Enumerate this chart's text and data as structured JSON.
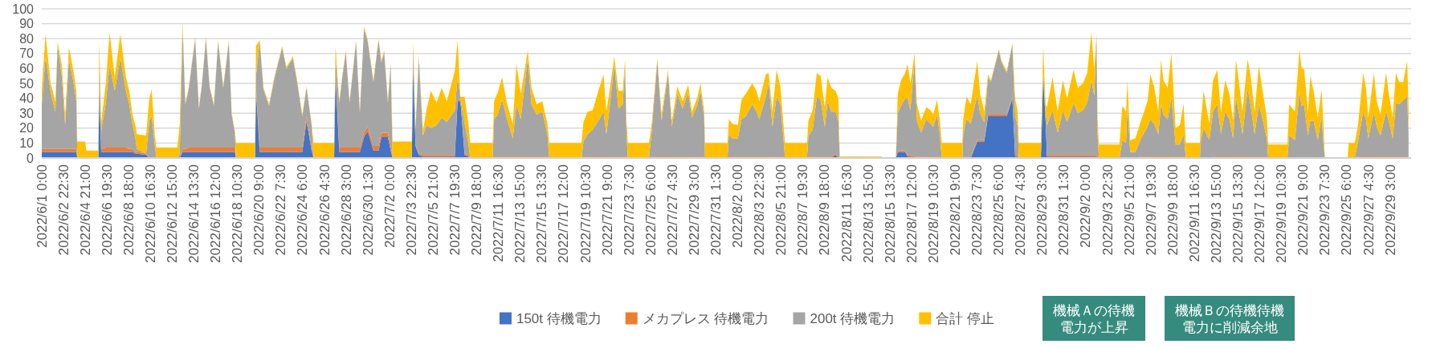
{
  "chart_data": {
    "type": "area",
    "stacked": true,
    "x": [
      "2022-06-01T00:00",
      "2022-06-01T08:00",
      "2022-06-01T19:00",
      "2022-06-02T05:00",
      "2022-06-02T10:00",
      "2022-06-02T19:00",
      "2022-06-03T02:00",
      "2022-06-03T10:00",
      "2022-06-03T19:00",
      "2022-06-04T02:00",
      "2022-06-04T04:00",
      "2022-06-04T21:00",
      "2022-06-04T23:00",
      "2022-06-06T01:00",
      "2022-06-06T03:00",
      "2022-06-06T07:00",
      "2022-06-06T17:00",
      "2022-06-07T01:00",
      "2022-06-07T12:00",
      "2022-06-08T00:00",
      "2022-06-08T12:00",
      "2022-06-08T19:00",
      "2022-06-09T02:00",
      "2022-06-09T08:00",
      "2022-06-09T11:00",
      "2022-06-10T07:00",
      "2022-06-10T14:00",
      "2022-06-10T19:00",
      "2022-06-11T02:00",
      "2022-06-11T05:00",
      "2022-06-13T02:00",
      "2022-06-13T07:00",
      "2022-06-13T13:00",
      "2022-06-13T19:00",
      "2022-06-14T02:00",
      "2022-06-14T16:00",
      "2022-06-15T00:00",
      "2022-06-15T06:00",
      "2022-06-15T15:00",
      "2022-06-15T23:00",
      "2022-06-16T08:00",
      "2022-06-16T17:00",
      "2022-06-17T04:00",
      "2022-06-17T16:00",
      "2022-06-17T22:00",
      "2022-06-18T05:00",
      "2022-06-18T07:00",
      "2022-06-20T00:00",
      "2022-06-20T02:00",
      "2022-06-20T10:00",
      "2022-06-20T18:00",
      "2022-06-21T06:00",
      "2022-06-21T17:00",
      "2022-06-22T10:00",
      "2022-06-22T19:00",
      "2022-06-23T09:00",
      "2022-06-23T18:00",
      "2022-06-24T05:00",
      "2022-06-24T14:00",
      "2022-06-25T01:00",
      "2022-06-25T05:00",
      "2022-06-27T01:00",
      "2022-06-27T04:00",
      "2022-06-27T12:00",
      "2022-06-27T18:00",
      "2022-06-28T02:00",
      "2022-06-28T10:00",
      "2022-06-29T00:00",
      "2022-06-29T08:00",
      "2022-06-29T17:00",
      "2022-06-30T01:00",
      "2022-06-30T13:00",
      "2022-07-01T00:00",
      "2022-07-01T06:00",
      "2022-07-01T12:00",
      "2022-07-01T20:00",
      "2022-07-02T02:00",
      "2022-07-02T06:00",
      "2022-07-03T23:00",
      "2022-07-04T02:00",
      "2022-07-04T07:00",
      "2022-07-04T14:00",
      "2022-07-04T23:00",
      "2022-07-05T07:00",
      "2022-07-05T16:00",
      "2022-07-06T04:00",
      "2022-07-06T15:00",
      "2022-07-07T02:00",
      "2022-07-07T19:00",
      "2022-07-08T01:00",
      "2022-07-08T07:00",
      "2022-07-08T16:00",
      "2022-07-09T00:00",
      "2022-07-09T04:00",
      "2022-07-11T04:00",
      "2022-07-11T07:00",
      "2022-07-11T15:00",
      "2022-07-12T00:00",
      "2022-07-12T11:00",
      "2022-07-12T23:00",
      "2022-07-13T07:00",
      "2022-07-13T16:00",
      "2022-07-14T07:00",
      "2022-07-14T15:00",
      "2022-07-15T02:00",
      "2022-07-15T14:00",
      "2022-07-16T01:00",
      "2022-07-16T05:00",
      "2022-07-19T02:00",
      "2022-07-19T06:00",
      "2022-07-19T15:00",
      "2022-07-20T02:00",
      "2022-07-20T14:00",
      "2022-07-21T01:00",
      "2022-07-21T07:00",
      "2022-07-21T13:00",
      "2022-07-22T00:00",
      "2022-07-22T09:00",
      "2022-07-22T18:00",
      "2022-07-22T23:00",
      "2022-07-23T02:00",
      "2022-07-23T05:00",
      "2022-07-25T02:00",
      "2022-07-25T08:00",
      "2022-07-25T20:00",
      "2022-07-26T05:00",
      "2022-07-26T19:00",
      "2022-07-27T03:00",
      "2022-07-27T15:00",
      "2022-07-28T02:00",
      "2022-07-28T14:00",
      "2022-07-28T22:00",
      "2022-07-29T10:00",
      "2022-07-29T16:00",
      "2022-07-30T00:00",
      "2022-07-30T02:00",
      "2022-08-01T02:00",
      "2022-08-01T05:00",
      "2022-08-01T12:00",
      "2022-08-02T00:00",
      "2022-08-02T08:00",
      "2022-08-02T17:00",
      "2022-08-03T07:00",
      "2022-08-03T16:00",
      "2022-08-03T22:00",
      "2022-08-04T12:00",
      "2022-08-04T18:00",
      "2022-08-05T02:00",
      "2022-08-05T11:00",
      "2022-08-05T19:00",
      "2022-08-06T01:00",
      "2022-08-06T05:00",
      "2022-08-08T04:00",
      "2022-08-08T07:00",
      "2022-08-08T16:00",
      "2022-08-09T01:00",
      "2022-08-09T09:00",
      "2022-08-09T18:00",
      "2022-08-10T00:00",
      "2022-08-10T08:00",
      "2022-08-10T17:00",
      "2022-08-10T23:00",
      "2022-08-11T02:00",
      "2022-08-14T19:00",
      "2022-08-15T00:00",
      "2022-08-16T02:00",
      "2022-08-16T06:00",
      "2022-08-16T13:00",
      "2022-08-16T22:00",
      "2022-08-17T03:00",
      "2022-08-17T09:00",
      "2022-08-17T18:00",
      "2022-08-17T23:00",
      "2022-08-18T08:00",
      "2022-08-18T19:00",
      "2022-08-19T04:00",
      "2022-08-19T10:00",
      "2022-08-19T18:00",
      "2022-08-20T00:00",
      "2022-08-20T04:00",
      "2022-08-22T00:00",
      "2022-08-22T02:00",
      "2022-08-22T09:00",
      "2022-08-22T18:00",
      "2022-08-23T08:00",
      "2022-08-23T14:00",
      "2022-08-23T23:00",
      "2022-08-24T07:00",
      "2022-08-24T13:00",
      "2022-08-25T06:00",
      "2022-08-25T12:00",
      "2022-08-25T23:00",
      "2022-08-26T11:00",
      "2022-08-26T17:00",
      "2022-08-26T22:00",
      "2022-08-27T01:00",
      "2022-08-29T00:00",
      "2022-08-29T05:00",
      "2022-08-29T10:00",
      "2022-08-29T13:00",
      "2022-08-30T01:00",
      "2022-08-30T12:00",
      "2022-08-30T23:00",
      "2022-08-31T08:00",
      "2022-08-31T22:00",
      "2022-09-01T07:00",
      "2022-09-01T18:00",
      "2022-09-02T03:00",
      "2022-09-02T12:00",
      "2022-09-02T18:00",
      "2022-09-02T23:00",
      "2022-09-03T01:00",
      "2022-09-03T04:00",
      "2022-09-05T00:00",
      "2022-09-05T06:00",
      "2022-09-05T14:00",
      "2022-09-05T17:00",
      "2022-09-05T23:00",
      "2022-09-06T10:00",
      "2022-09-06T22:00",
      "2022-09-07T12:00",
      "2022-09-07T18:00",
      "2022-09-08T02:00",
      "2022-09-08T11:00",
      "2022-09-08T17:00",
      "2022-09-08T22:00",
      "2022-09-09T07:00",
      "2022-09-09T15:00",
      "2022-09-10T00:00",
      "2022-09-10T09:00",
      "2022-09-10T17:00",
      "2022-09-10T22:00",
      "2022-09-12T04:00",
      "2022-09-12T06:00",
      "2022-09-12T12:00",
      "2022-09-13T00:00",
      "2022-09-13T08:00",
      "2022-09-13T17:00",
      "2022-09-14T01:00",
      "2022-09-14T10:00",
      "2022-09-14T19:00",
      "2022-09-15T03:00",
      "2022-09-15T09:00",
      "2022-09-15T15:00",
      "2022-09-15T23:00",
      "2022-09-16T10:00",
      "2022-09-16T16:00",
      "2022-09-17T01:00",
      "2022-09-17T10:00",
      "2022-09-17T18:00",
      "2022-09-18T03:00",
      "2022-09-18T06:00",
      "2022-09-19T23:00",
      "2022-09-20T03:00",
      "2022-09-20T15:00",
      "2022-09-21T01:00",
      "2022-09-21T05:00",
      "2022-09-21T11:00",
      "2022-09-21T19:00",
      "2022-09-22T00:00",
      "2022-09-22T07:00",
      "2022-09-22T16:00",
      "2022-09-23T00:00",
      "2022-09-23T04:00",
      "2022-09-23T07:00",
      "2022-09-25T08:00",
      "2022-09-25T10:00",
      "2022-09-25T23:00",
      "2022-09-26T06:00",
      "2022-09-26T17:00",
      "2022-09-26T23:00",
      "2022-09-27T04:00",
      "2022-09-27T16:00",
      "2022-09-27T22:00",
      "2022-09-28T06:00",
      "2022-09-28T18:00",
      "2022-09-28T23:00",
      "2022-09-29T08:00",
      "2022-09-29T15:00",
      "2022-09-29T22:00",
      "2022-09-30T07:00",
      "2022-09-30T15:00",
      "2022-09-30T18:00"
    ],
    "series": [
      {
        "name": "150t 待機電力",
        "color": "#4472c4",
        "values": [
          4,
          4,
          4,
          4,
          4,
          4,
          4,
          4,
          4,
          4,
          0,
          0,
          0,
          0,
          45,
          4,
          4,
          4,
          4,
          4,
          4,
          4,
          4,
          3,
          3,
          2,
          0,
          0,
          0,
          0,
          0,
          0,
          4,
          4,
          4,
          4,
          4,
          4,
          4,
          4,
          4,
          4,
          4,
          4,
          4,
          4,
          0,
          0,
          45,
          4,
          4,
          4,
          4,
          4,
          4,
          4,
          4,
          4,
          25,
          5,
          0,
          0,
          55,
          4,
          4,
          4,
          4,
          4,
          4,
          14,
          18,
          5,
          5,
          14,
          14,
          14,
          5,
          0,
          0,
          60,
          8,
          2,
          1,
          1,
          1,
          1,
          1,
          1,
          1,
          38,
          38,
          2,
          1,
          0,
          0,
          0,
          0,
          0,
          0,
          0,
          0,
          0,
          0,
          0,
          0,
          0,
          0,
          0,
          0,
          0,
          0,
          0,
          0,
          0,
          0,
          0,
          0,
          0,
          0,
          0,
          0,
          0,
          0,
          0,
          0,
          0,
          0,
          0,
          0,
          0,
          0,
          0,
          0,
          0,
          0,
          0,
          0,
          0,
          0,
          0,
          0,
          0,
          0,
          0,
          0,
          0,
          0,
          0,
          0,
          0,
          0,
          0,
          0,
          0,
          0,
          0,
          0,
          0,
          0,
          0,
          2,
          0,
          0,
          0,
          0,
          0,
          4,
          4,
          4,
          1,
          1,
          0,
          0,
          0,
          0,
          0,
          0,
          0,
          0,
          0,
          0,
          0,
          0,
          0,
          11,
          11,
          11,
          28,
          28,
          28,
          28,
          28,
          40,
          1,
          1,
          0,
          0,
          55,
          25,
          1,
          1,
          1,
          1,
          1,
          1,
          1,
          1,
          1,
          1,
          1,
          1,
          0,
          0,
          0,
          0,
          0,
          0,
          0,
          0,
          0,
          0,
          0,
          0,
          0,
          0,
          0,
          0,
          0,
          0,
          0,
          0,
          0,
          0,
          0,
          0,
          0,
          0,
          0,
          0,
          0,
          0,
          0,
          0,
          0,
          0,
          0,
          0,
          0,
          0,
          0,
          0,
          0,
          0,
          0,
          0,
          0,
          0,
          0,
          0,
          0,
          0,
          0,
          0,
          0,
          0,
          0,
          0,
          0,
          0,
          0,
          0,
          0,
          0,
          0,
          0,
          0,
          0,
          0,
          0,
          0,
          0,
          0,
          0
        ]
      },
      {
        "name": "メカプレス 待機電力",
        "color": "#ed7d31",
        "values": [
          2,
          2,
          2,
          2,
          2,
          2,
          2,
          2,
          2,
          2,
          0,
          0,
          0,
          0,
          2,
          2,
          3,
          3,
          3,
          3,
          3,
          2,
          2,
          1,
          1,
          1,
          0,
          0,
          0,
          0,
          0,
          0,
          2,
          2,
          3,
          3,
          3,
          3,
          3,
          3,
          3,
          3,
          3,
          3,
          3,
          3,
          0,
          0,
          2,
          3,
          3,
          3,
          3,
          3,
          3,
          3,
          3,
          3,
          3,
          2,
          0,
          0,
          2,
          3,
          3,
          3,
          3,
          3,
          3,
          3,
          3,
          3,
          3,
          3,
          3,
          3,
          3,
          0,
          0,
          2,
          1,
          1,
          1,
          1,
          1,
          1,
          1,
          1,
          1,
          1,
          1,
          1,
          1,
          0,
          0,
          1,
          1,
          1,
          1,
          1,
          1,
          1,
          1,
          1,
          1,
          1,
          1,
          0,
          0,
          1,
          1,
          1,
          1,
          1,
          1,
          1,
          1,
          1,
          1,
          1,
          1,
          0,
          0,
          1,
          1,
          1,
          1,
          1,
          1,
          1,
          1,
          1,
          1,
          1,
          1,
          0,
          0,
          1,
          1,
          1,
          1,
          1,
          1,
          1,
          1,
          1,
          1,
          1,
          1,
          1,
          1,
          0,
          0,
          1,
          1,
          1,
          1,
          1,
          1,
          1,
          1,
          1,
          0,
          0,
          0,
          0,
          1,
          1,
          1,
          1,
          1,
          1,
          1,
          1,
          1,
          1,
          1,
          1,
          1,
          0,
          0,
          1,
          1,
          1,
          1,
          1,
          1,
          1,
          1,
          1,
          1,
          1,
          1,
          1,
          1,
          0,
          0,
          1,
          1,
          1,
          1,
          1,
          1,
          1,
          1,
          1,
          1,
          1,
          1,
          1,
          1,
          1,
          0,
          0,
          0,
          0,
          0,
          0,
          0,
          1,
          1,
          1,
          1,
          1,
          1,
          1,
          1,
          1,
          1,
          1,
          1,
          0,
          0,
          0,
          0,
          0,
          1,
          1,
          1,
          1,
          1,
          1,
          1,
          1,
          1,
          1,
          1,
          1,
          1,
          1,
          1,
          0,
          0,
          0,
          0,
          0,
          0,
          0,
          0,
          0,
          0,
          0,
          0,
          0,
          0,
          0,
          0,
          0,
          1,
          1,
          1,
          1,
          1,
          1,
          1,
          1,
          1,
          1,
          1,
          1,
          1,
          1,
          1
        ]
      },
      {
        "name": "200t 待機電力",
        "color": "#a5a5a5",
        "values": [
          30,
          62,
          38,
          25,
          70,
          48,
          16,
          60,
          46,
          32,
          0,
          0,
          0,
          0,
          15,
          12,
          30,
          55,
          38,
          60,
          38,
          30,
          16,
          10,
          2,
          0,
          25,
          28,
          8,
          0,
          0,
          3,
          80,
          30,
          39,
          73,
          26,
          41,
          73,
          40,
          28,
          71,
          40,
          71,
          22,
          10,
          0,
          0,
          8,
          71,
          39,
          28,
          46,
          67,
          53,
          60,
          44,
          21,
          19,
          15,
          0,
          0,
          10,
          30,
          46,
          64,
          30,
          71,
          23,
          70,
          57,
          43,
          71,
          47,
          54,
          20,
          55,
          0,
          0,
          12,
          10,
          64,
          13,
          20,
          18,
          20,
          25,
          22,
          30,
          15,
          1,
          20,
          8,
          0,
          0,
          25,
          28,
          38,
          25,
          12,
          35,
          25,
          66,
          35,
          28,
          30,
          15,
          0,
          0,
          10,
          15,
          18,
          24,
          30,
          15,
          30,
          62,
          32,
          35,
          60,
          15,
          0,
          0,
          17,
          64,
          24,
          56,
          20,
          42,
          32,
          43,
          26,
          35,
          44,
          27,
          0,
          0,
          15,
          12,
          12,
          25,
          27,
          35,
          30,
          25,
          40,
          50,
          20,
          40,
          35,
          14,
          0,
          0,
          14,
          18,
          40,
          38,
          20,
          37,
          30,
          28,
          24,
          0,
          0,
          0,
          0,
          25,
          30,
          35,
          38,
          30,
          64,
          24,
          16,
          25,
          22,
          20,
          28,
          15,
          0,
          0,
          15,
          25,
          22,
          30,
          18,
          12,
          25,
          22,
          43,
          35,
          28,
          35,
          26,
          20,
          0,
          0,
          2,
          5,
          20,
          30,
          15,
          30,
          22,
          35,
          28,
          30,
          35,
          50,
          40,
          78,
          16,
          0,
          0,
          12,
          10,
          35,
          4,
          4,
          12,
          20,
          25,
          22,
          15,
          35,
          28,
          25,
          40,
          8,
          8,
          15,
          0,
          0,
          12,
          20,
          12,
          30,
          35,
          15,
          30,
          25,
          12,
          40,
          30,
          15,
          45,
          35,
          15,
          35,
          25,
          12,
          0,
          0,
          15,
          12,
          45,
          35,
          35,
          15,
          25,
          25,
          12,
          28,
          10,
          0,
          0,
          0,
          0,
          10,
          30,
          25,
          12,
          30,
          20,
          14,
          30,
          25,
          12,
          35,
          35,
          38,
          40,
          15
        ]
      },
      {
        "name": "合計 停止",
        "color": "#ffc000",
        "values": [
          10,
          15,
          6,
          7,
          2,
          8,
          6,
          8,
          8,
          7,
          11,
          11,
          5,
          5,
          16,
          6,
          13,
          22,
          9,
          16,
          9,
          9,
          7,
          8,
          10,
          12,
          15,
          18,
          6,
          7,
          7,
          20,
          5,
          1,
          1,
          1,
          1,
          1,
          1,
          1,
          1,
          1,
          1,
          1,
          1,
          1,
          10,
          10,
          20,
          1,
          1,
          1,
          1,
          1,
          1,
          1,
          1,
          1,
          1,
          1,
          10,
          10,
          8,
          1,
          1,
          1,
          1,
          1,
          1,
          1,
          1,
          1,
          1,
          1,
          1,
          1,
          1,
          11,
          11,
          4,
          1,
          2,
          3,
          11,
          25,
          15,
          20,
          14,
          26,
          25,
          1,
          18,
          13,
          10,
          10,
          12,
          15,
          15,
          10,
          10,
          27,
          17,
          5,
          11,
          7,
          7,
          7,
          10,
          10,
          13,
          15,
          13,
          20,
          25,
          15,
          12,
          5,
          12,
          9,
          5,
          9,
          10,
          10,
          5,
          2,
          4,
          2,
          4,
          5,
          5,
          5,
          4,
          5,
          5,
          4,
          10,
          10,
          10,
          10,
          9,
          13,
          15,
          14,
          14,
          12,
          15,
          6,
          10,
          18,
          12,
          10,
          10,
          10,
          10,
          13,
          16,
          16,
          13,
          16,
          16,
          14,
          15,
          1,
          1,
          0,
          0,
          13,
          17,
          17,
          23,
          18,
          5,
          11,
          8,
          8,
          9,
          8,
          10,
          9,
          10,
          10,
          10,
          15,
          13,
          23,
          13,
          7,
          2,
          1,
          1,
          1,
          1,
          1,
          12,
          10,
          10,
          10,
          17,
          5,
          12,
          22,
          14,
          20,
          16,
          22,
          17,
          18,
          20,
          32,
          18,
          3,
          10,
          9,
          9,
          23,
          21,
          17,
          8,
          9,
          12,
          17,
          30,
          25,
          15,
          30,
          23,
          21,
          29,
          11,
          13,
          20,
          10,
          10,
          13,
          25,
          11,
          21,
          23,
          15,
          21,
          17,
          12,
          25,
          21,
          15,
          20,
          20,
          15,
          26,
          19,
          14,
          9,
          9,
          21,
          19,
          28,
          26,
          24,
          16,
          30,
          20,
          15,
          18,
          13,
          0,
          0,
          10,
          10,
          11,
          26,
          21,
          14,
          26,
          17,
          14,
          26,
          19,
          14,
          21,
          15,
          12,
          24,
          18
        ]
      }
    ],
    "xlim": [
      "2022-06-01T00:00",
      "2022-09-30T23:30"
    ],
    "xticks": [
      {
        "value": "2022-06-01T00:00",
        "label": "2022/6/1 0:00"
      },
      {
        "value": "2022-06-02T22:30",
        "label": "2022/6/2 22:30"
      },
      {
        "value": "2022-06-04T21:00",
        "label": "2022/6/4 21:00"
      },
      {
        "value": "2022-06-06T19:30",
        "label": "2022/6/6 19:30"
      },
      {
        "value": "2022-06-08T18:00",
        "label": "2022/6/8 18:00"
      },
      {
        "value": "2022-06-10T16:30",
        "label": "2022/6/10 16:30"
      },
      {
        "value": "2022-06-12T15:00",
        "label": "2022/6/12 15:00"
      },
      {
        "value": "2022-06-14T13:30",
        "label": "2022/6/14 13:30"
      },
      {
        "value": "2022-06-16T12:00",
        "label": "2022/6/16 12:00"
      },
      {
        "value": "2022-06-18T10:30",
        "label": "2022/6/18 10:30"
      },
      {
        "value": "2022-06-20T09:00",
        "label": "2022/6/20 9:00"
      },
      {
        "value": "2022-06-22T07:30",
        "label": "2022/6/22 7:30"
      },
      {
        "value": "2022-06-24T06:00",
        "label": "2022/6/24 6:00"
      },
      {
        "value": "2022-06-26T04:30",
        "label": "2022/6/26 4:30"
      },
      {
        "value": "2022-06-28T03:00",
        "label": "2022/6/28 3:00"
      },
      {
        "value": "2022-06-30T01:30",
        "label": "2022/6/30 1:30"
      },
      {
        "value": "2022-07-02T00:00",
        "label": "2022/7/2 0:00"
      },
      {
        "value": "2022-07-03T22:30",
        "label": "2022/7/3 22:30"
      },
      {
        "value": "2022-07-05T21:00",
        "label": "2022/7/5 21:00"
      },
      {
        "value": "2022-07-07T19:30",
        "label": "2022/7/7 19:30"
      },
      {
        "value": "2022-07-09T18:00",
        "label": "2022/7/9 18:00"
      },
      {
        "value": "2022-07-11T16:30",
        "label": "2022/7/11 16:30"
      },
      {
        "value": "2022-07-13T15:00",
        "label": "2022/7/13 15:00"
      },
      {
        "value": "2022-07-15T13:30",
        "label": "2022/7/15 13:30"
      },
      {
        "value": "2022-07-17T12:00",
        "label": "2022/7/17 12:00"
      },
      {
        "value": "2022-07-19T10:30",
        "label": "2022/7/19 10:30"
      },
      {
        "value": "2022-07-21T09:00",
        "label": "2022/7/21 9:00"
      },
      {
        "value": "2022-07-23T07:30",
        "label": "2022/7/23 7:30"
      },
      {
        "value": "2022-07-25T06:00",
        "label": "2022/7/25 6:00"
      },
      {
        "value": "2022-07-27T04:30",
        "label": "2022/7/27 4:30"
      },
      {
        "value": "2022-07-29T03:00",
        "label": "2022/7/29 3:00"
      },
      {
        "value": "2022-07-31T01:30",
        "label": "2022/7/31 1:30"
      },
      {
        "value": "2022-08-02T00:00",
        "label": "2022/8/2 0:00"
      },
      {
        "value": "2022-08-03T22:30",
        "label": "2022/8/3 22:30"
      },
      {
        "value": "2022-08-05T21:00",
        "label": "2022/8/5 21:00"
      },
      {
        "value": "2022-08-07T19:30",
        "label": "2022/8/7 19:30"
      },
      {
        "value": "2022-08-09T18:00",
        "label": "2022/8/9 18:00"
      },
      {
        "value": "2022-08-11T16:30",
        "label": "2022/8/11 16:30"
      },
      {
        "value": "2022-08-13T15:00",
        "label": "2022/8/13 15:00"
      },
      {
        "value": "2022-08-15T13:30",
        "label": "2022/8/15 13:30"
      },
      {
        "value": "2022-08-17T12:00",
        "label": "2022/8/17 12:00"
      },
      {
        "value": "2022-08-19T10:30",
        "label": "2022/8/19 10:30"
      },
      {
        "value": "2022-08-21T09:00",
        "label": "2022/8/21 9:00"
      },
      {
        "value": "2022-08-23T07:30",
        "label": "2022/8/23 7:30"
      },
      {
        "value": "2022-08-25T06:00",
        "label": "2022/8/25 6:00"
      },
      {
        "value": "2022-08-27T04:30",
        "label": "2022/8/27 4:30"
      },
      {
        "value": "2022-08-29T03:00",
        "label": "2022/8/29 3:00"
      },
      {
        "value": "2022-08-31T01:30",
        "label": "2022/8/31 1:30"
      },
      {
        "value": "2022-09-02T00:00",
        "label": "2022/9/2 0:00"
      },
      {
        "value": "2022-09-03T22:30",
        "label": "2022/9/3 22:30"
      },
      {
        "value": "2022-09-05T21:00",
        "label": "2022/9/5 21:00"
      },
      {
        "value": "2022-09-07T19:30",
        "label": "2022/9/7 19:30"
      },
      {
        "value": "2022-09-09T18:00",
        "label": "2022/9/9 18:00"
      },
      {
        "value": "2022-09-11T16:30",
        "label": "2022/9/11 16:30"
      },
      {
        "value": "2022-09-13T15:00",
        "label": "2022/9/13 15:00"
      },
      {
        "value": "2022-09-15T13:30",
        "label": "2022/9/15 13:30"
      },
      {
        "value": "2022-09-17T12:00",
        "label": "2022/9/17 12:00"
      },
      {
        "value": "2022-09-19T10:30",
        "label": "2022/9/19 10:30"
      },
      {
        "value": "2022-09-21T09:00",
        "label": "2022/9/21 9:00"
      },
      {
        "value": "2022-09-23T07:30",
        "label": "2022/9/23 7:30"
      },
      {
        "value": "2022-09-25T06:00",
        "label": "2022/9/25 6:00"
      },
      {
        "value": "2022-09-27T04:30",
        "label": "2022/9/27 4:30"
      },
      {
        "value": "2022-09-29T03:00",
        "label": "2022/9/29 3:00"
      }
    ],
    "ylim": [
      0,
      100
    ],
    "yticks": [
      0,
      10,
      20,
      30,
      40,
      50,
      60,
      70,
      80,
      90,
      100
    ],
    "grid": "y",
    "legend": "bottom",
    "annotations": [
      "機械Ａの待機電力が上昇",
      "機械Ｂの待機待機電力に削減余地"
    ]
  }
}
